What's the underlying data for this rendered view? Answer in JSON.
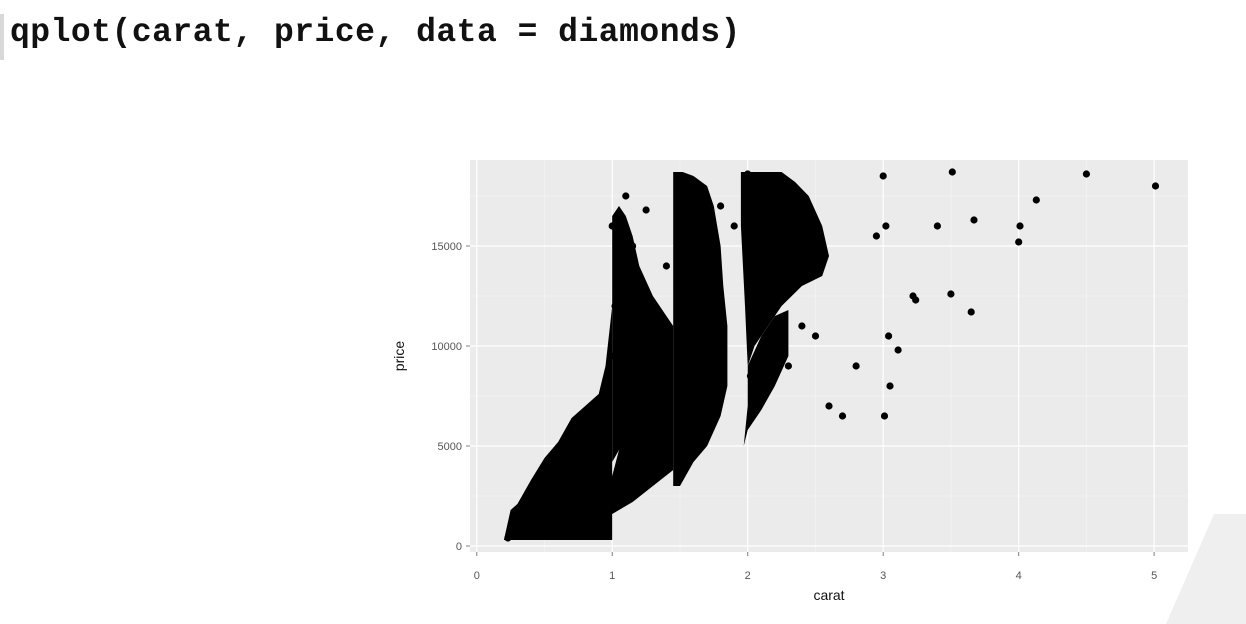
{
  "code": {
    "text": "qplot(carat, price, data = diamonds)"
  },
  "chart_data": {
    "type": "scatter",
    "title": "",
    "xlabel": "carat",
    "ylabel": "price",
    "xlim": [
      -0.05,
      5.25
    ],
    "ylim": [
      -300,
      19300
    ],
    "x_ticks": [
      0,
      1,
      2,
      3,
      4,
      5
    ],
    "x_tick_labels": [
      "0",
      "1",
      "2",
      "3",
      "4",
      "5"
    ],
    "y_ticks": [
      0,
      5000,
      10000,
      15000
    ],
    "y_tick_labels": [
      "0",
      "5000",
      "10000",
      "15000"
    ],
    "grid": true,
    "background": "#ebebeb",
    "point_color": "#000000",
    "series": [
      {
        "x": [
          0.23,
          0.3,
          0.31,
          0.4,
          0.5,
          0.52,
          0.6,
          0.7,
          0.72,
          0.8,
          0.9,
          1.0,
          1.01,
          1.02,
          1.05,
          1.1,
          1.15,
          1.2,
          1.25,
          1.3,
          1.4,
          1.5,
          1.51,
          1.52,
          1.6,
          1.7,
          1.75,
          1.8,
          1.9,
          2.0,
          2.01,
          2.02,
          2.05,
          2.1,
          2.2,
          2.3,
          2.4,
          2.5,
          2.6,
          2.7,
          2.8,
          2.95,
          3.0,
          3.01,
          3.02,
          3.04,
          3.05,
          3.11,
          3.22,
          3.24,
          3.4,
          3.5,
          3.51,
          3.65,
          3.67,
          4.0,
          4.01,
          4.13,
          4.5,
          5.01
        ],
        "y": [
          400,
          600,
          800,
          1100,
          1800,
          2300,
          2800,
          3300,
          4200,
          5200,
          6000,
          16000,
          9500,
          12000,
          14000,
          17500,
          15000,
          12500,
          16800,
          9000,
          14000,
          18500,
          12000,
          8000,
          18000,
          16500,
          14500,
          17000,
          16000,
          18600,
          14000,
          8500,
          17500,
          10000,
          12500,
          9000,
          11000,
          10500,
          7000,
          6500,
          9000,
          15500,
          18500,
          6500,
          16000,
          10500,
          8000,
          9800,
          12500,
          12300,
          16000,
          12600,
          18700,
          11700,
          16300,
          15200,
          16000,
          17300,
          18600,
          18000
        ]
      }
    ]
  }
}
